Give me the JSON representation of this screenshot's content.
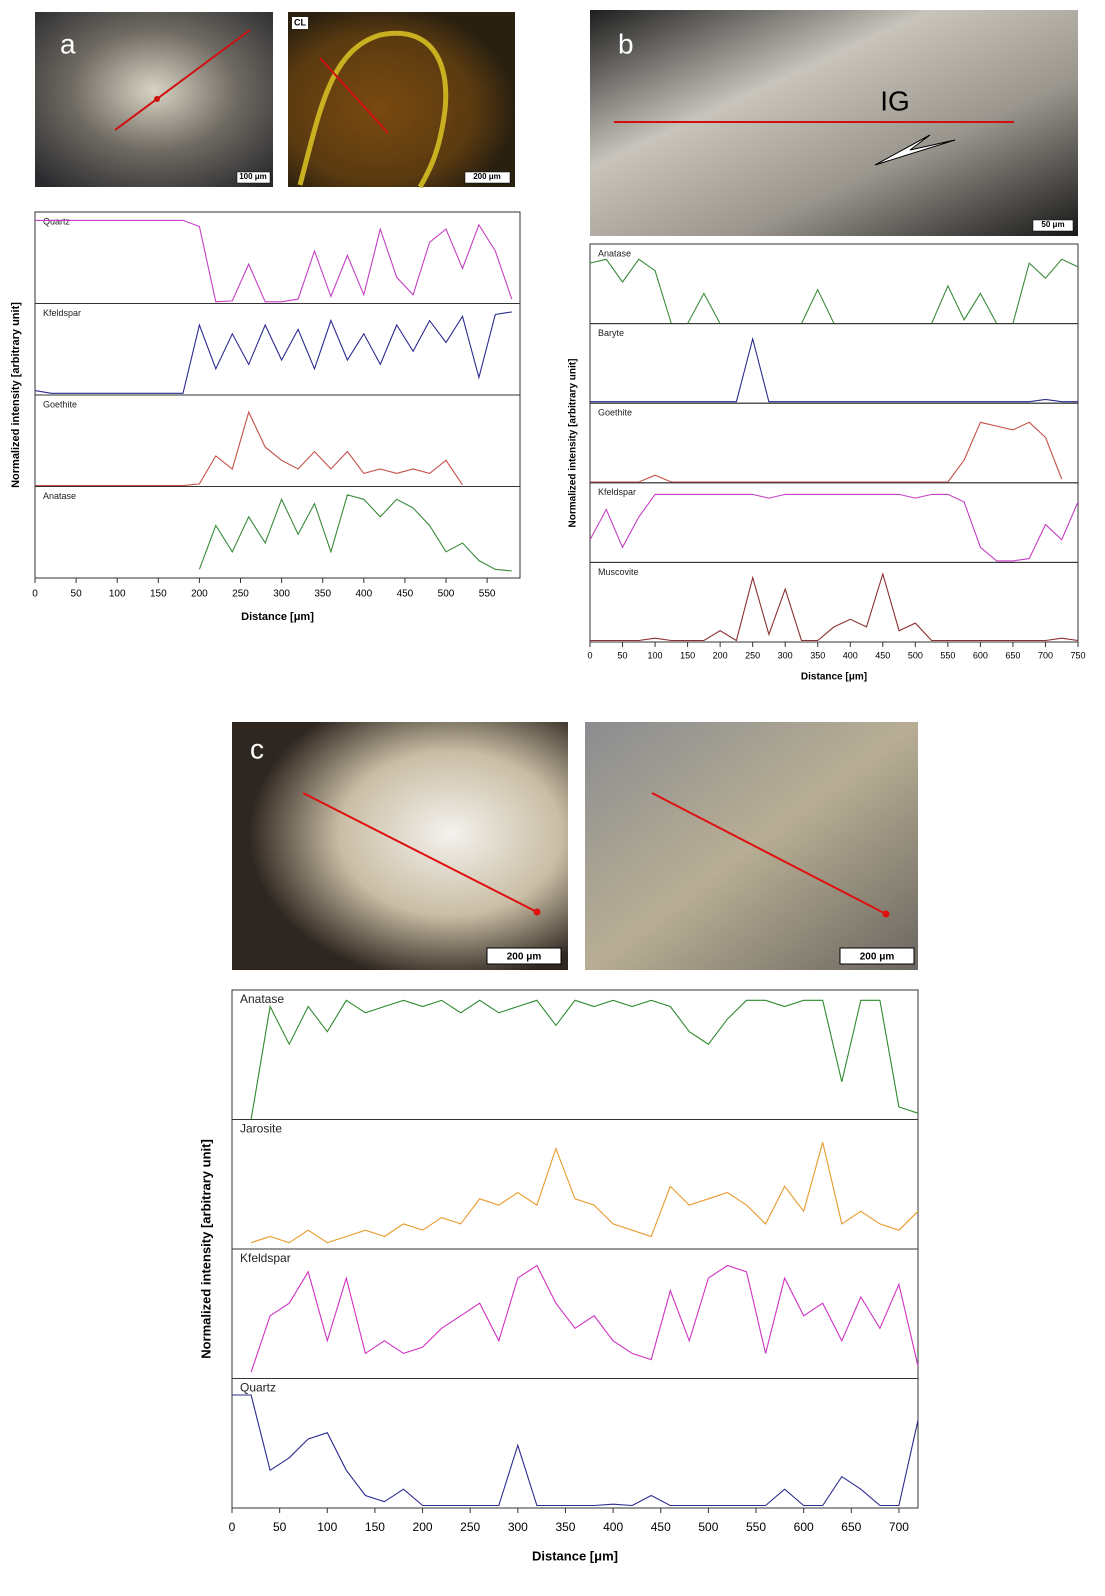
{
  "micrographs": [
    {
      "label": "a",
      "scale_bar": "100 μm"
    },
    {
      "label": "CL",
      "scale_bar": "200 μm"
    },
    {
      "label": "b",
      "annotation": "IG",
      "scale_bar": "50 μm"
    },
    {
      "label": "c",
      "scale_bar": "200 μm"
    },
    {
      "scale_bar": "200 μm"
    }
  ],
  "chart_data": [
    {
      "type": "line",
      "xlabel": "Distance [μm]",
      "ylabel": "Normalized intensity [arbitrary unit]",
      "xlim": [
        0,
        590
      ],
      "xticks": [
        0,
        50,
        100,
        150,
        200,
        250,
        300,
        350,
        400,
        450,
        500,
        550
      ],
      "ylim": [
        0,
        1
      ],
      "x": [
        0,
        20,
        40,
        60,
        80,
        100,
        120,
        140,
        160,
        180,
        200,
        220,
        240,
        260,
        280,
        300,
        320,
        340,
        360,
        380,
        400,
        420,
        440,
        460,
        480,
        500,
        520,
        540,
        560,
        580
      ],
      "series": [
        {
          "name": "Quartz",
          "color": "#c53fc5",
          "values": [
            0.95,
            0.95,
            0.95,
            0.95,
            0.95,
            0.95,
            0.95,
            0.95,
            0.95,
            0.95,
            0.88,
            0.02,
            0.03,
            0.45,
            0.02,
            0.02,
            0.05,
            0.6,
            0.08,
            0.55,
            0.1,
            0.85,
            0.3,
            0.1,
            0.7,
            0.85,
            0.4,
            0.9,
            0.6,
            0.05
          ]
        },
        {
          "name": "Kfeldspar",
          "color": "#2b2b8f",
          "values": [
            0.05,
            0.02,
            0.02,
            0.02,
            0.02,
            0.02,
            0.02,
            0.02,
            0.02,
            0.02,
            0.8,
            0.3,
            0.7,
            0.35,
            0.8,
            0.4,
            0.75,
            0.3,
            0.85,
            0.4,
            0.7,
            0.35,
            0.8,
            0.5,
            0.85,
            0.6,
            0.9,
            0.2,
            0.92,
            0.95
          ]
        },
        {
          "name": "Goethite",
          "color": "#c4504a",
          "values": [
            0.01,
            0.01,
            0.01,
            0.01,
            0.01,
            0.01,
            0.01,
            0.01,
            0.01,
            0.01,
            0.03,
            0.35,
            0.2,
            0.85,
            0.45,
            0.3,
            0.2,
            0.4,
            0.2,
            0.4,
            0.15,
            0.2,
            0.15,
            0.2,
            0.15,
            0.3,
            0.02,
            null,
            null,
            null
          ]
        },
        {
          "name": "Anatase",
          "color": "#3a8a3a",
          "values": [
            null,
            null,
            null,
            null,
            null,
            null,
            null,
            null,
            null,
            null,
            0.1,
            0.6,
            0.3,
            0.7,
            0.4,
            0.9,
            0.5,
            0.85,
            0.3,
            0.95,
            0.9,
            0.7,
            0.9,
            0.8,
            0.6,
            0.3,
            0.4,
            0.2,
            0.1,
            0.08
          ]
        }
      ]
    },
    {
      "type": "line",
      "xlabel": "Distance [μm]",
      "ylabel": "Normalized intensity [arbitrary unit]",
      "xlim": [
        0,
        750
      ],
      "xticks": [
        0,
        50,
        100,
        150,
        200,
        250,
        300,
        350,
        400,
        450,
        500,
        550,
        600,
        650,
        700,
        750
      ],
      "ylim": [
        0,
        1
      ],
      "x": [
        0,
        25,
        50,
        75,
        100,
        125,
        150,
        175,
        200,
        225,
        250,
        275,
        300,
        325,
        350,
        375,
        400,
        425,
        450,
        475,
        500,
        525,
        550,
        575,
        600,
        625,
        650,
        675,
        700,
        725,
        750
      ],
      "series": [
        {
          "name": "Anatase",
          "color": "#3a8a3a",
          "values": [
            0.8,
            0.85,
            0.55,
            0.85,
            0.7,
            0,
            0,
            0.4,
            0,
            0,
            0,
            0,
            0,
            0,
            0.45,
            0,
            0,
            0,
            0,
            0,
            0,
            0,
            0.5,
            0.05,
            0.4,
            0,
            0,
            0.8,
            0.6,
            0.85,
            0.75
          ]
        },
        {
          "name": "Baryte",
          "color": "#2b2b8f",
          "values": [
            0.02,
            0.02,
            0.02,
            0.02,
            0.02,
            0.02,
            0.02,
            0.02,
            0.02,
            0.02,
            0.85,
            0.02,
            0.02,
            0.02,
            0.02,
            0.02,
            0.02,
            0.02,
            0.02,
            0.02,
            0.02,
            0.02,
            0.02,
            0.02,
            0.02,
            0.02,
            0.02,
            0.02,
            0.05,
            0.02,
            0.02
          ]
        },
        {
          "name": "Goethite",
          "color": "#c4504a",
          "values": [
            0.01,
            0.01,
            0.01,
            0.01,
            0.1,
            0.01,
            0.01,
            0.01,
            0.01,
            0.01,
            0.01,
            0.01,
            0.01,
            0.01,
            0.01,
            0.01,
            0.01,
            0.01,
            0.01,
            0.01,
            0.01,
            0.01,
            0.01,
            0.3,
            0.8,
            0.75,
            0.7,
            0.8,
            0.6,
            0.05,
            null
          ]
        },
        {
          "name": "Kfeldspar",
          "color": "#c53fc5",
          "values": [
            0.3,
            0.7,
            0.2,
            0.6,
            0.9,
            0.9,
            0.9,
            0.9,
            0.9,
            0.9,
            0.9,
            0.85,
            0.9,
            0.9,
            0.9,
            0.9,
            0.9,
            0.9,
            0.9,
            0.9,
            0.85,
            0.9,
            0.9,
            0.8,
            0.2,
            0.02,
            0.02,
            0.05,
            0.5,
            0.3,
            0.8
          ]
        },
        {
          "name": "Muscovite",
          "color": "#8b2f2f",
          "values": [
            0.02,
            0.02,
            0.02,
            0.02,
            0.05,
            0.02,
            0.02,
            0.02,
            0.15,
            0.02,
            0.85,
            0.1,
            0.7,
            0.02,
            0.02,
            0.2,
            0.3,
            0.2,
            0.9,
            0.15,
            0.25,
            0.02,
            0.02,
            0.02,
            0.02,
            0.02,
            0.02,
            0.02,
            0.02,
            0.05,
            0.02
          ]
        }
      ]
    },
    {
      "type": "line",
      "xlabel": "Distance [μm]",
      "ylabel": "Normalized intensity [arbitrary unit]",
      "xlim": [
        0,
        720
      ],
      "xticks": [
        0,
        50,
        100,
        150,
        200,
        250,
        300,
        350,
        400,
        450,
        500,
        550,
        600,
        650,
        700
      ],
      "ylim": [
        0,
        1
      ],
      "x": [
        0,
        20,
        40,
        60,
        80,
        100,
        120,
        140,
        160,
        180,
        200,
        220,
        240,
        260,
        280,
        300,
        320,
        340,
        360,
        380,
        400,
        420,
        440,
        460,
        480,
        500,
        520,
        540,
        560,
        580,
        600,
        620,
        640,
        660,
        680,
        700,
        720
      ],
      "series": [
        {
          "name": "Anatase",
          "color": "#2f8a2f",
          "values": [
            null,
            0.0,
            0.9,
            0.6,
            0.9,
            0.7,
            0.95,
            0.85,
            0.9,
            0.95,
            0.9,
            0.95,
            0.85,
            0.95,
            0.85,
            0.9,
            0.95,
            0.75,
            0.95,
            0.9,
            0.95,
            0.9,
            0.95,
            0.9,
            0.7,
            0.6,
            0.8,
            0.95,
            0.95,
            0.9,
            0.95,
            0.95,
            0.3,
            0.95,
            0.95,
            0.1,
            0.05
          ]
        },
        {
          "name": "Jarosite",
          "color": "#e89a2c",
          "values": [
            null,
            0.05,
            0.1,
            0.05,
            0.15,
            0.05,
            0.1,
            0.15,
            0.1,
            0.2,
            0.15,
            0.25,
            0.2,
            0.4,
            0.35,
            0.45,
            0.35,
            0.8,
            0.4,
            0.35,
            0.2,
            0.15,
            0.1,
            0.5,
            0.35,
            0.4,
            0.45,
            0.35,
            0.2,
            0.5,
            0.3,
            0.85,
            0.2,
            0.3,
            0.2,
            0.15,
            0.3
          ]
        },
        {
          "name": "Kfeldspar",
          "color": "#d132c4",
          "values": [
            null,
            0.05,
            0.5,
            0.6,
            0.85,
            0.3,
            0.8,
            0.2,
            0.3,
            0.2,
            0.25,
            0.4,
            0.5,
            0.6,
            0.3,
            0.8,
            0.9,
            0.6,
            0.4,
            0.5,
            0.3,
            0.2,
            0.15,
            0.7,
            0.3,
            0.8,
            0.9,
            0.85,
            0.2,
            0.8,
            0.5,
            0.6,
            0.3,
            0.65,
            0.4,
            0.75,
            0.1
          ]
        },
        {
          "name": "Quartz",
          "color": "#2b2b8f",
          "values": [
            0.9,
            0.9,
            0.3,
            0.4,
            0.55,
            0.6,
            0.3,
            0.1,
            0.05,
            0.15,
            0.02,
            0.02,
            0.02,
            0.02,
            0.02,
            0.5,
            0.02,
            0.02,
            0.02,
            0.02,
            0.03,
            0.02,
            0.1,
            0.02,
            0.02,
            0.02,
            0.02,
            0.02,
            0.02,
            0.15,
            0.02,
            0.02,
            0.25,
            0.15,
            0.02,
            0.02,
            0.7
          ]
        }
      ]
    }
  ]
}
